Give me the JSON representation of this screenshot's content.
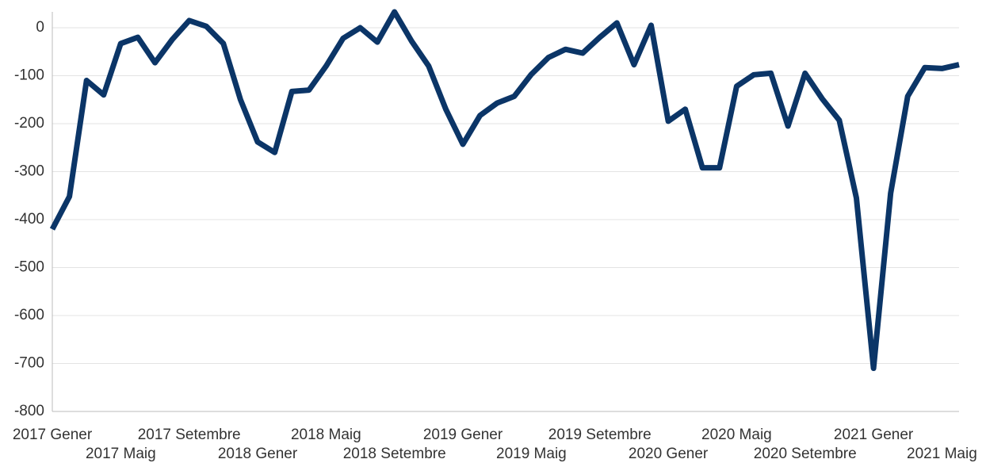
{
  "chart_data": {
    "type": "line",
    "categories": [
      "2017 Gener",
      null,
      null,
      null,
      "2017 Maig",
      null,
      null,
      null,
      "2017 Setembre",
      null,
      null,
      null,
      "2018 Gener",
      null,
      null,
      null,
      "2018 Maig",
      null,
      null,
      null,
      "2018 Setembre",
      null,
      null,
      null,
      "2019 Gener",
      null,
      null,
      null,
      "2019 Maig",
      null,
      null,
      null,
      "2019 Setembre",
      null,
      null,
      null,
      "2020 Gener",
      null,
      null,
      null,
      "2020 Maig",
      null,
      null,
      null,
      "2020 Setembre",
      null,
      null,
      null,
      "2021 Gener",
      null,
      null,
      null,
      "2021 Maig",
      null
    ],
    "values": [
      -420,
      -352,
      -110,
      -140,
      -33,
      -20,
      -73,
      -25,
      15,
      3,
      -33,
      -150,
      -238,
      -260,
      -133,
      -130,
      -80,
      -22,
      0,
      -30,
      33,
      -28,
      -80,
      -170,
      -243,
      -183,
      -157,
      -143,
      -97,
      -62,
      -45,
      -53,
      -20,
      10,
      -77,
      5,
      -195,
      -170,
      -292,
      -292,
      -122,
      -98,
      -95,
      -205,
      -95,
      -148,
      -193,
      -355,
      -710,
      -345,
      -143,
      -83,
      -85,
      -77
    ],
    "color": "#0b3567",
    "ylim": [
      -800,
      33
    ],
    "yticks": [
      0,
      -100,
      -200,
      -300,
      -400,
      -500,
      -600,
      -700,
      -800
    ],
    "grid": true
  }
}
